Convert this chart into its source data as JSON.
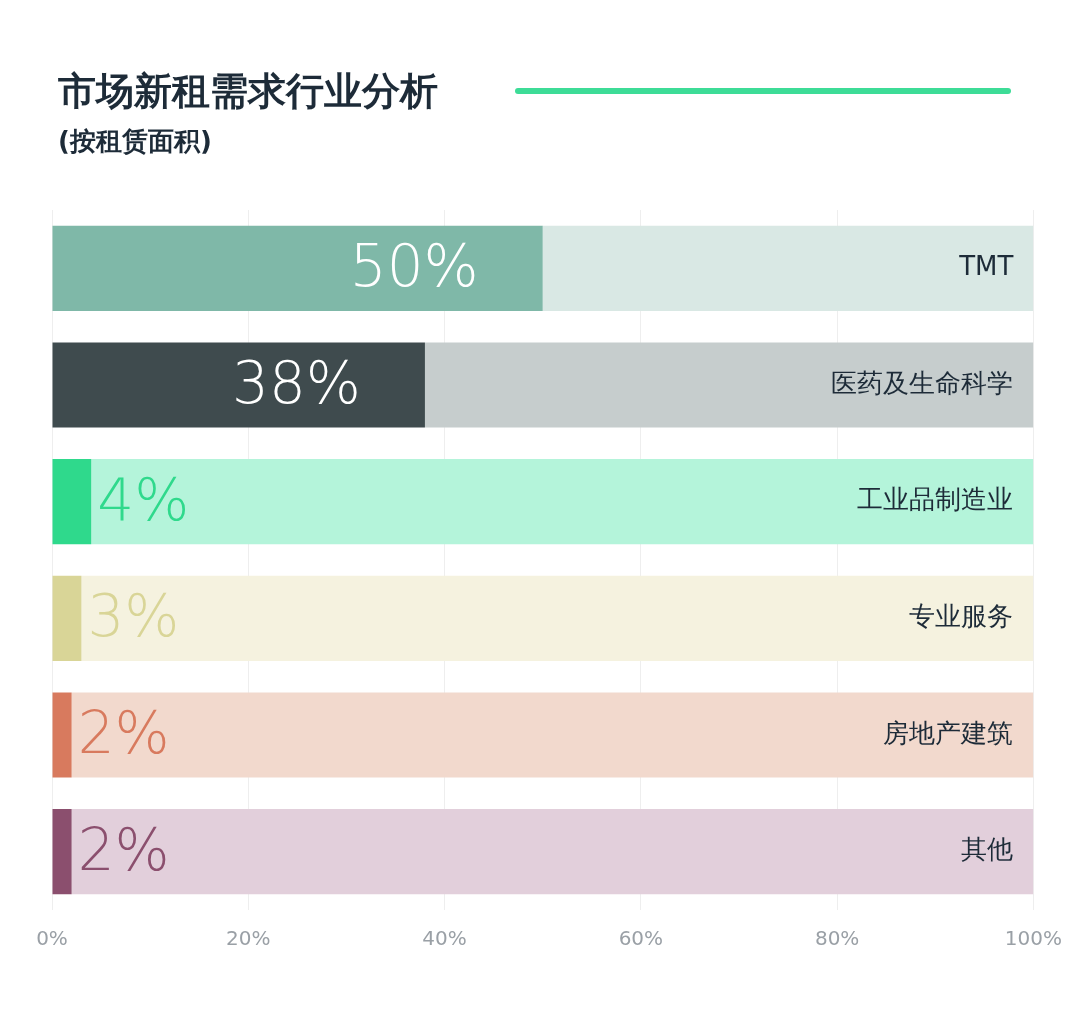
{
  "chart_data": {
    "type": "bar",
    "orientation": "horizontal",
    "stacked": true,
    "title": "市场新租需求行业分析",
    "subtitle": "(按租赁面积)",
    "categories": [
      "TMT",
      "医药及生命科学",
      "工业品制造业",
      "专业服务",
      "房地产建筑",
      "其他"
    ],
    "series": [
      {
        "values": [
          50,
          38,
          4,
          3,
          2,
          2
        ],
        "colors": [
          "#7fb8a8",
          "#3f4b4e",
          "#2fd98c",
          "#d9d597",
          "#d87a5e",
          "#8b4f6e"
        ],
        "value_labels": [
          "50%",
          "38%",
          "4%",
          "3%",
          "2%",
          "2%"
        ]
      },
      {
        "values": [
          50,
          62,
          96,
          97,
          98,
          98
        ],
        "colors": [
          "#d9e8e4",
          "#c6cdcd",
          "#b4f4da",
          "#f5f2df",
          "#f2d9cd",
          "#e2cfdb"
        ]
      }
    ],
    "xlim": [
      0,
      100
    ],
    "xticks": [
      {
        "value": 0,
        "label": "0%"
      },
      {
        "value": 20,
        "label": "20%"
      },
      {
        "value": 40,
        "label": "40%"
      },
      {
        "value": 60,
        "label": "60%"
      },
      {
        "value": 80,
        "label": "80%"
      },
      {
        "value": 100,
        "label": "100%"
      }
    ],
    "grid": "x",
    "legend": false
  }
}
